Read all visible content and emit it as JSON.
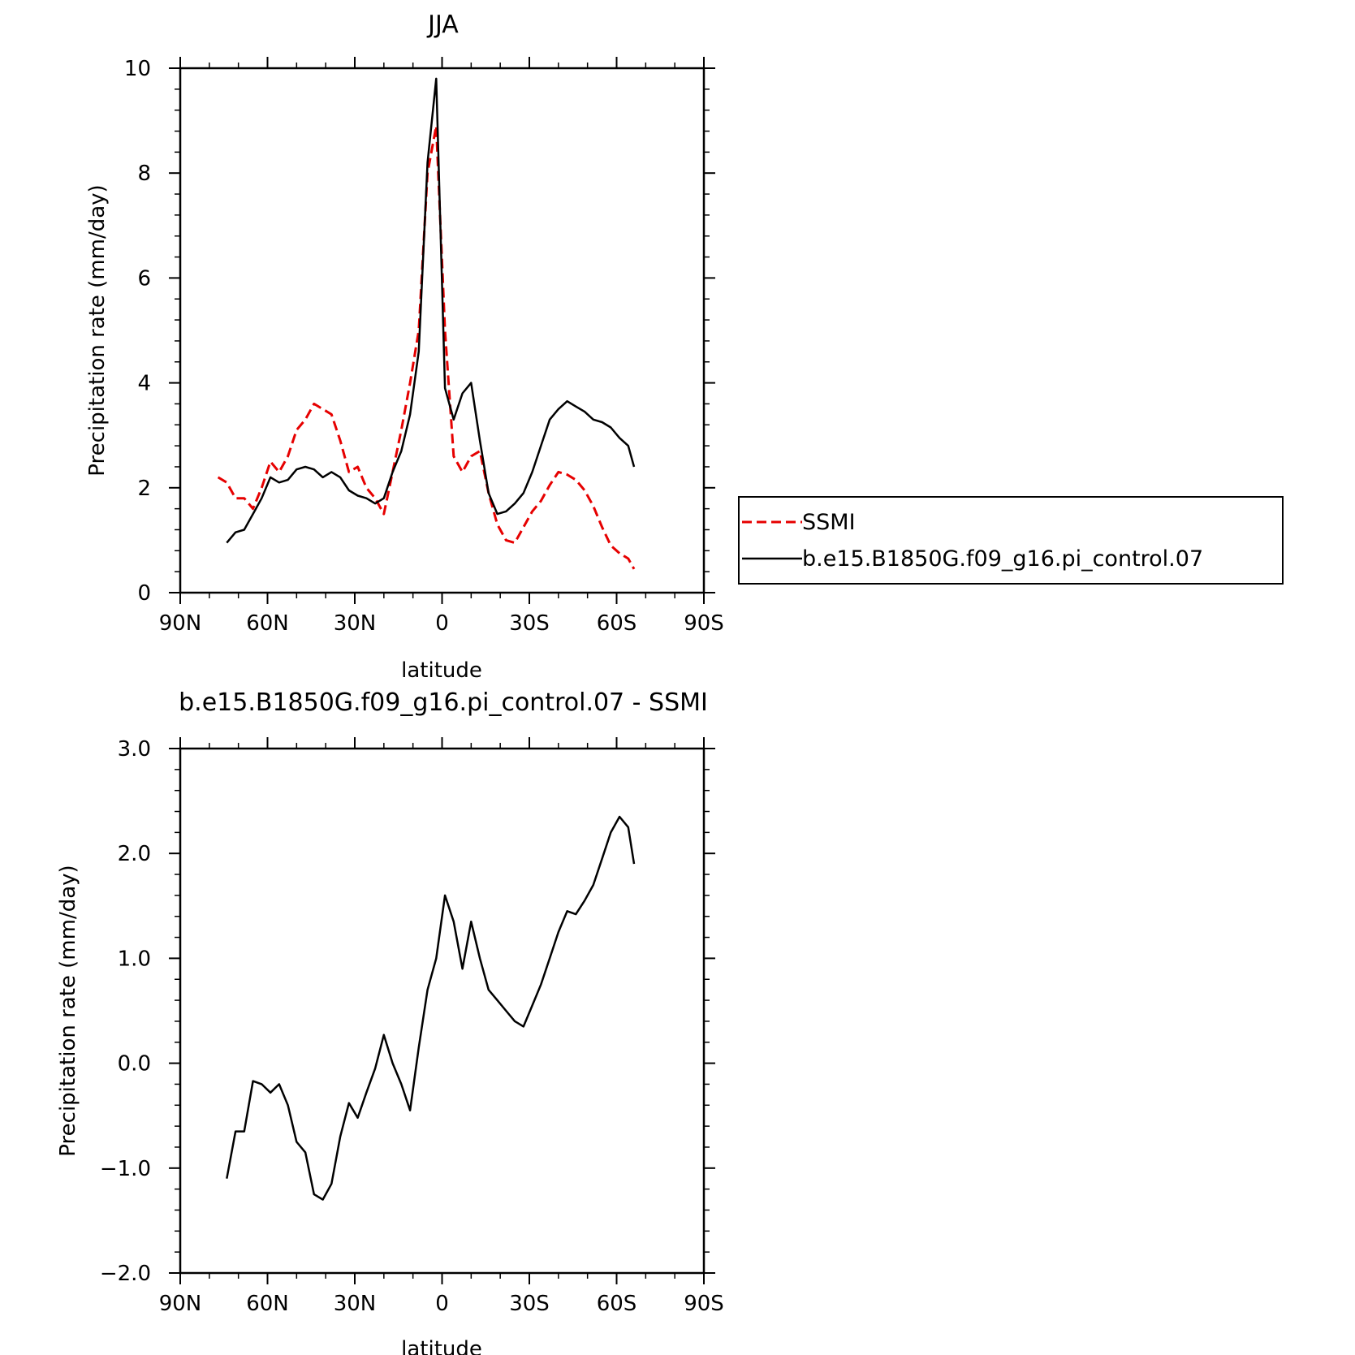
{
  "chart_data": [
    {
      "type": "line",
      "title": "JJA",
      "xlabel": "latitude",
      "ylabel": "Precipitation rate (mm/day)",
      "xlim": [
        90,
        -90
      ],
      "ylim": [
        0,
        10
      ],
      "xticks": [
        90,
        60,
        30,
        0,
        -30,
        -60,
        -90
      ],
      "xtick_labels": [
        "90N",
        "60N",
        "30N",
        "0",
        "30S",
        "60S",
        "90S"
      ],
      "yticks": [
        0,
        2,
        4,
        6,
        8,
        10
      ],
      "ytick_labels": [
        "0",
        "2",
        "4",
        "6",
        "8",
        "10"
      ],
      "legend": "right-middle",
      "series": [
        {
          "name": "SSMI",
          "color": "#e60000",
          "style": "dashed",
          "x": [
            77,
            74,
            71,
            68,
            65,
            62,
            59,
            56,
            53,
            50,
            47,
            44,
            41,
            38,
            35,
            32,
            29,
            26,
            23,
            20,
            17,
            14,
            11,
            8,
            5,
            2,
            -1,
            -4,
            -7,
            -10,
            -13,
            -16,
            -19,
            -22,
            -25,
            -28,
            -31,
            -34,
            -37,
            -40,
            -43,
            -46,
            -49,
            -52,
            -55,
            -58,
            -61,
            -64,
            -66
          ],
          "y": [
            2.2,
            2.1,
            1.8,
            1.8,
            1.6,
            2.0,
            2.5,
            2.3,
            2.6,
            3.1,
            3.3,
            3.6,
            3.5,
            3.4,
            2.9,
            2.3,
            2.4,
            2.0,
            1.8,
            1.5,
            2.3,
            3.1,
            4.0,
            5.0,
            8.0,
            8.9,
            5.0,
            2.6,
            2.3,
            2.6,
            2.7,
            1.9,
            1.3,
            1.0,
            0.95,
            1.25,
            1.55,
            1.75,
            2.05,
            2.3,
            2.25,
            2.15,
            1.95,
            1.65,
            1.25,
            0.9,
            0.75,
            0.65,
            0.45
          ]
        },
        {
          "name": "b.e15.B1850G.f09_g16.pi_control.07",
          "color": "#000000",
          "style": "solid",
          "x": [
            74,
            71,
            68,
            65,
            62,
            59,
            56,
            53,
            50,
            47,
            44,
            41,
            38,
            35,
            32,
            29,
            26,
            23,
            20,
            17,
            14,
            11,
            8,
            5,
            2,
            -1,
            -4,
            -7,
            -10,
            -13,
            -16,
            -19,
            -22,
            -25,
            -28,
            -31,
            -34,
            -37,
            -40,
            -43,
            -46,
            -49,
            -52,
            -55,
            -58,
            -61,
            -64,
            -66
          ],
          "y": [
            0.95,
            1.15,
            1.2,
            1.5,
            1.8,
            2.2,
            2.1,
            2.15,
            2.35,
            2.4,
            2.35,
            2.2,
            2.3,
            2.2,
            1.95,
            1.85,
            1.8,
            1.7,
            1.8,
            2.3,
            2.7,
            3.4,
            4.6,
            8.2,
            9.8,
            3.9,
            3.3,
            3.8,
            4.0,
            2.9,
            1.9,
            1.5,
            1.55,
            1.7,
            1.9,
            2.3,
            2.8,
            3.3,
            3.5,
            3.65,
            3.55,
            3.45,
            3.3,
            3.25,
            3.15,
            2.95,
            2.8,
            2.4
          ]
        }
      ]
    },
    {
      "type": "line",
      "title": "b.e15.B1850G.f09_g16.pi_control.07 - SSMI",
      "xlabel": "latitude",
      "ylabel": "Precipitation rate (mm/day)",
      "xlim": [
        90,
        -90
      ],
      "ylim": [
        -2.0,
        3.0
      ],
      "xticks": [
        90,
        60,
        30,
        0,
        -30,
        -60,
        -90
      ],
      "xtick_labels": [
        "90N",
        "60N",
        "30N",
        "0",
        "30S",
        "60S",
        "90S"
      ],
      "yticks": [
        -2.0,
        -1.0,
        0.0,
        1.0,
        2.0,
        3.0
      ],
      "ytick_labels": [
        "−2.0",
        "−1.0",
        "0.0",
        "1.0",
        "2.0",
        "3.0"
      ],
      "series": [
        {
          "color": "#000000",
          "style": "solid",
          "x": [
            74,
            71,
            68,
            65,
            62,
            59,
            56,
            53,
            50,
            47,
            44,
            41,
            38,
            35,
            32,
            29,
            26,
            23,
            20,
            17,
            14,
            11,
            8,
            5,
            2,
            -1,
            -4,
            -7,
            -10,
            -13,
            -16,
            -19,
            -22,
            -25,
            -28,
            -31,
            -34,
            -37,
            -40,
            -43,
            -46,
            -49,
            -52,
            -55,
            -58,
            -61,
            -64,
            -66
          ],
          "y": [
            -1.1,
            -0.65,
            -0.65,
            -0.17,
            -0.2,
            -0.28,
            -0.2,
            -0.4,
            -0.75,
            -0.85,
            -1.25,
            -1.3,
            -1.15,
            -0.7,
            -0.38,
            -0.52,
            -0.28,
            -0.05,
            0.27,
            0.0,
            -0.2,
            -0.45,
            0.15,
            0.7,
            1.0,
            1.6,
            1.35,
            0.9,
            1.35,
            1.0,
            0.7,
            0.6,
            0.5,
            0.4,
            0.35,
            0.55,
            0.75,
            1.0,
            1.25,
            1.45,
            1.42,
            1.55,
            1.7,
            1.95,
            2.2,
            2.35,
            2.25,
            1.9
          ]
        }
      ]
    }
  ]
}
